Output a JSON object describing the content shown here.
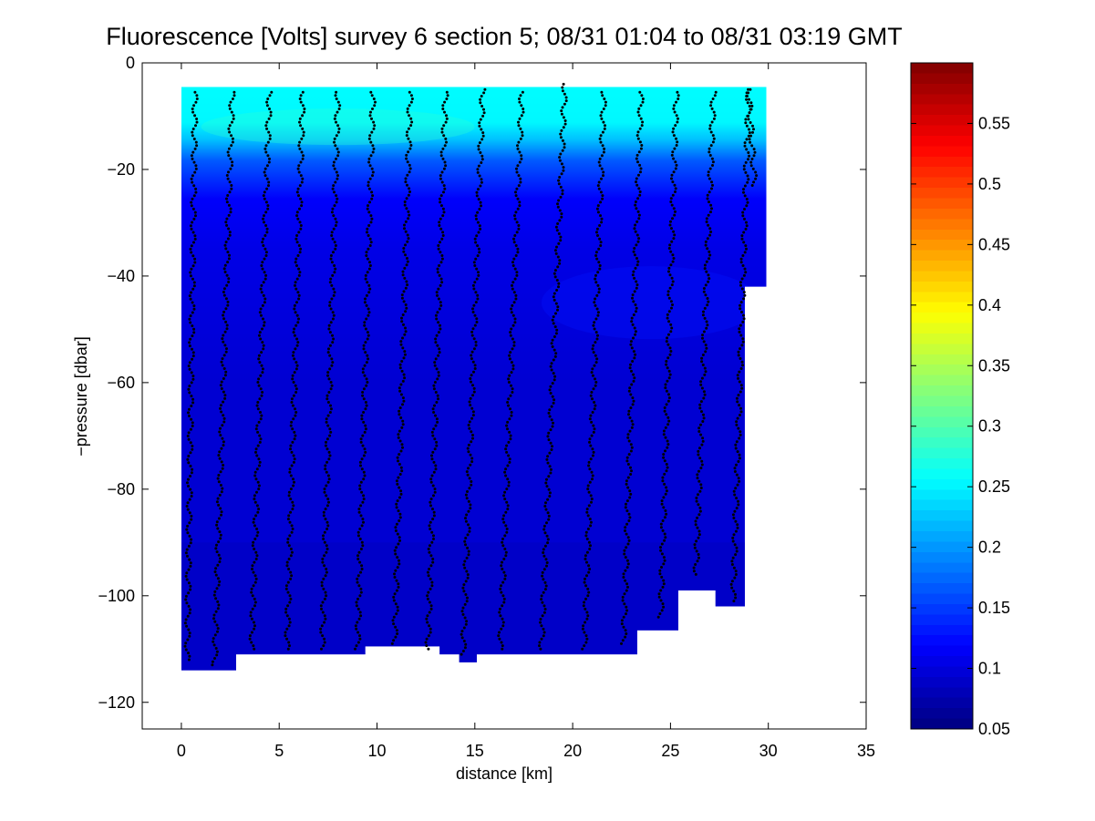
{
  "chart_data": {
    "type": "heatmap",
    "title": "Fluorescence [Volts] survey 6 section 5; 08/31 01:04 to 08/31 03:19 GMT",
    "xlabel": "distance [km]",
    "ylabel": "−pressure [dbar]",
    "xlim": [
      -2,
      35
    ],
    "ylim": [
      -125,
      0
    ],
    "x_ticks": [
      0,
      5,
      10,
      15,
      20,
      25,
      30,
      35
    ],
    "x_tick_labels": [
      "0",
      "5",
      "10",
      "15",
      "20",
      "25",
      "30",
      "35"
    ],
    "y_ticks": [
      0,
      -20,
      -40,
      -60,
      -80,
      -100,
      -120
    ],
    "y_tick_labels": [
      "0",
      "−20",
      "−40",
      "−60",
      "−80",
      "−100",
      "−120"
    ],
    "colorbar": {
      "colormap": "jet",
      "range": [
        0.05,
        0.6
      ],
      "ticks": [
        0.05,
        0.1,
        0.15,
        0.2,
        0.25,
        0.3,
        0.35,
        0.4,
        0.45,
        0.5,
        0.55
      ],
      "tick_labels": [
        "0.05",
        "0.1",
        "0.15",
        "0.2",
        "0.25",
        "0.3",
        "0.35",
        "0.4",
        "0.45",
        "0.5",
        "0.55"
      ]
    },
    "field": {
      "x_range": [
        0,
        29.9
      ],
      "top_depth": -4.5,
      "surface_value": 0.255,
      "deep_value": 0.1,
      "bottom_profile": [
        [
          0,
          -114
        ],
        [
          2.8,
          -114
        ],
        [
          2.8,
          -111
        ],
        [
          9.4,
          -111
        ],
        [
          9.4,
          -109.5
        ],
        [
          13.2,
          -109.5
        ],
        [
          13.2,
          -111
        ],
        [
          14.2,
          -111
        ],
        [
          14.2,
          -112.5
        ],
        [
          15.1,
          -112.5
        ],
        [
          15.1,
          -111
        ],
        [
          23.3,
          -111
        ],
        [
          23.3,
          -106.5
        ],
        [
          25.4,
          -106.5
        ],
        [
          25.4,
          -99
        ],
        [
          27.3,
          -99
        ],
        [
          27.3,
          -102
        ],
        [
          28.8,
          -102
        ],
        [
          28.8,
          -42
        ],
        [
          29.9,
          -42
        ],
        [
          29.9,
          -4.5
        ]
      ]
    },
    "profiles": [
      {
        "x_top": 0.7,
        "x_bottom": 0.3,
        "y_top": -5.5,
        "y_bottom": -112
      },
      {
        "x_top": 2.6,
        "x_bottom": 1.7,
        "y_top": -5.5,
        "y_bottom": -113
      },
      {
        "x_top": 4.5,
        "x_bottom": 3.6,
        "y_top": -5.5,
        "y_bottom": -110
      },
      {
        "x_top": 6.2,
        "x_bottom": 5.4,
        "y_top": -5.5,
        "y_bottom": -110
      },
      {
        "x_top": 8.0,
        "x_bottom": 7.2,
        "y_top": -5.5,
        "y_bottom": -110
      },
      {
        "x_top": 9.8,
        "x_bottom": 9.0,
        "y_top": -5.5,
        "y_bottom": -110
      },
      {
        "x_top": 11.7,
        "x_bottom": 10.9,
        "y_top": -5.5,
        "y_bottom": -109
      },
      {
        "x_top": 13.5,
        "x_bottom": 12.6,
        "y_top": -5.5,
        "y_bottom": -110
      },
      {
        "x_top": 15.4,
        "x_bottom": 14.4,
        "y_top": -5.0,
        "y_bottom": -111
      },
      {
        "x_top": 17.4,
        "x_bottom": 16.3,
        "y_top": -5.5,
        "y_bottom": -110
      },
      {
        "x_top": 19.6,
        "x_bottom": 18.4,
        "y_top": -4.0,
        "y_bottom": -110
      },
      {
        "x_top": 21.6,
        "x_bottom": 20.6,
        "y_top": -5.5,
        "y_bottom": -110
      },
      {
        "x_top": 23.5,
        "x_bottom": 22.6,
        "y_top": -5.5,
        "y_bottom": -109
      },
      {
        "x_top": 25.3,
        "x_bottom": 24.5,
        "y_top": -5.5,
        "y_bottom": -104
      },
      {
        "x_top": 27.2,
        "x_bottom": 26.3,
        "y_top": -5.5,
        "y_bottom": -96
      },
      {
        "x_top": 29.0,
        "x_bottom": 28.2,
        "y_top": -5.0,
        "y_bottom": -101
      },
      {
        "x_top": 29.0,
        "x_bottom": 29.3,
        "y_top": -5.0,
        "y_bottom": -23
      }
    ]
  }
}
